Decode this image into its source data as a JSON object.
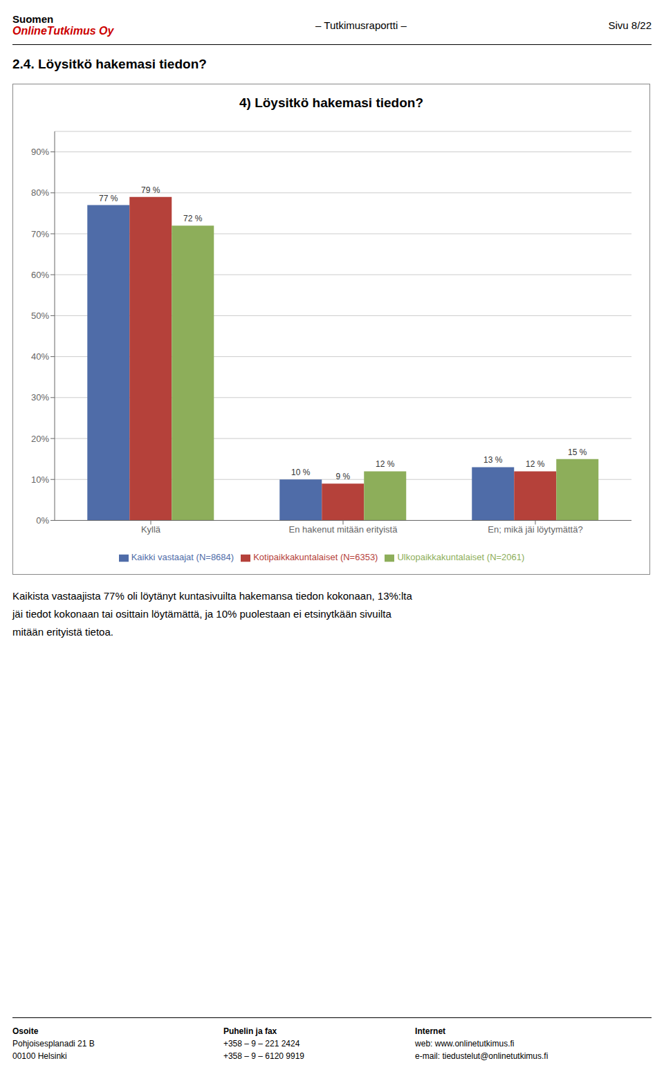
{
  "chart_data": {
    "type": "bar",
    "title": "4) Löysitkö hakemasi tiedon?",
    "categories": [
      "Kyllä",
      "En hakenut mitään erityistä",
      "En; mikä jäi löytymättä?"
    ],
    "series": [
      {
        "name": "Kaikki vastaajat (N=8684)",
        "color": "#4F6CA8",
        "values": [
          77,
          10,
          13
        ],
        "value_labels": [
          "77 %",
          "10 %",
          "13 %"
        ]
      },
      {
        "name": "Kotipaikkakunta­laiset (N=6353)",
        "color": "#B5413A",
        "values": [
          79,
          9,
          12
        ],
        "value_labels": [
          "79 %",
          "9 %",
          "12 %"
        ]
      },
      {
        "name": "Ulkopaikkakuntalaiset (N=2061)",
        "color": "#8DAE5A",
        "values": [
          72,
          12,
          15
        ],
        "value_labels": [
          "72 %",
          "12 %",
          "15 %"
        ]
      }
    ],
    "ylim": [
      0,
      95
    ],
    "yticks": [
      {
        "value": 0,
        "label": "0%"
      },
      {
        "value": 10,
        "label": "10%"
      },
      {
        "value": 20,
        "label": "20%"
      },
      {
        "value": 30,
        "label": "30%"
      },
      {
        "value": 40,
        "label": "40%"
      },
      {
        "value": 50,
        "label": "50%"
      },
      {
        "value": 60,
        "label": "60%"
      },
      {
        "value": 70,
        "label": "70%"
      },
      {
        "value": 80,
        "label": "80%"
      },
      {
        "value": 90,
        "label": "90%"
      }
    ],
    "grid": true,
    "data_labels": true,
    "legend": "bottom"
  },
  "page": {
    "header": {
      "company": "Suomen",
      "brand": {
        "text": "OnlineTutkimus Oy",
        "color": "#CC0000"
      },
      "center": "– Tutkimusraportti –",
      "right": "Sivu 8/22"
    },
    "section_title": "2.4. Löysitkö hakemasi tiedon?",
    "body": [
      "Kaikista vastaajista 77% oli löytänyt kuntasivuilta hakemansa tiedon kokonaan, 13%:lta",
      "jäi tiedot kokonaan tai osittain löytämättä, ja 10% puolestaan ei etsinytkään sivuilta",
      "mitään erityistä tietoa."
    ],
    "footer": [
      {
        "heading": "Osoite",
        "lines": [
          "Pohjoisesplanadi 21 B",
          "00100 Helsinki"
        ]
      },
      {
        "heading": "Puhelin ja fax",
        "lines": [
          "+358 – 9 – 221 2424",
          "+358 – 9 – 6120 9919"
        ]
      },
      {
        "heading": "Internet",
        "lines": [
          "web: www.onlinetutkimus.fi",
          "e-mail: tiedustelut@onlinetutkimus.fi"
        ]
      }
    ]
  }
}
